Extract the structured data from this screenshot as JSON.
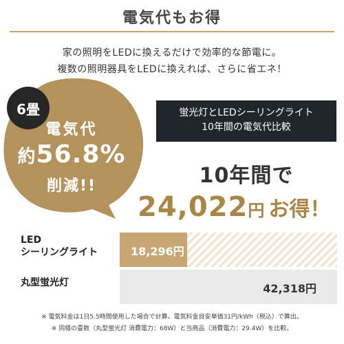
{
  "title": "電気代もお得",
  "lead": {
    "line1": "家の照明をLEDに換えるだけで効率的な節電に。",
    "line2": "複数の照明器具をLEDに換えれば、さらに省エネ！"
  },
  "badge": {
    "tatami": "6畳"
  },
  "burst": {
    "line1": "電気代",
    "prefix": "約",
    "percent": "56.8%",
    "line3": "削減!!"
  },
  "comparison_box": {
    "line1": "蛍光灯とLEDシーリングライト",
    "line2": "10年間の電気代比較"
  },
  "headline": {
    "years": "10年間で",
    "amount": "24,022",
    "yen": "円",
    "otoku": "お得！"
  },
  "rows": [
    {
      "label_line1": "LED",
      "label_line2": "シーリングライト",
      "value": "18,296円",
      "amount": 18296
    },
    {
      "label_line1": "丸型蛍光灯",
      "label_line2": "",
      "value": "42,318円",
      "amount": 42318
    }
  ],
  "notes": {
    "line1": "※ 電気料金は1日5.5時間使用した場合で計算。電気料金目安単価31円/kWh（税込）で算出。",
    "line2": "※ 同様の畳数（丸型蛍光灯 消費電力：68W）と当商品（消費電力：29.4W）を比較。"
  },
  "colors": {
    "gold": "#c9a774",
    "gold_text": "#a98546",
    "dark": "#20262c",
    "gray_bar": "#e9e9e9"
  }
}
